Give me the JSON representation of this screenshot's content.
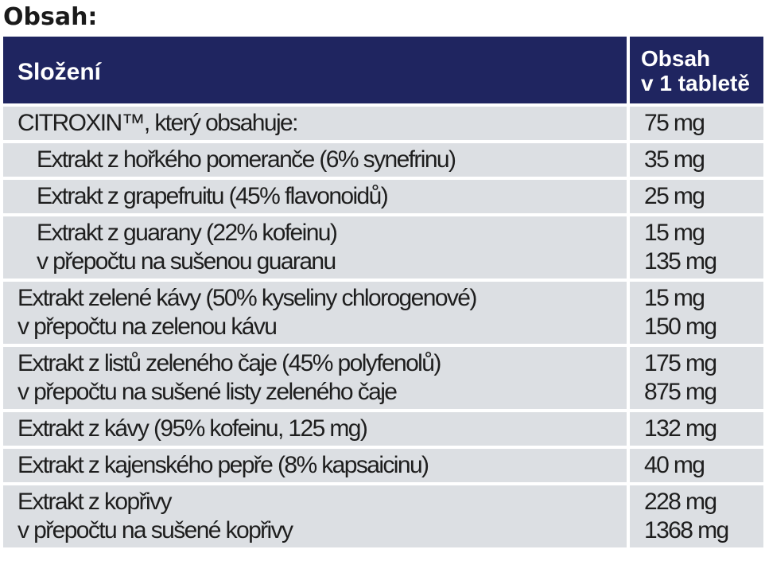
{
  "heading": "Obsah:",
  "table": {
    "col1_header": "Složení",
    "col2_header_line1": "Obsah",
    "col2_header_line2": "v 1 tabletě",
    "rows": [
      {
        "ingredient": [
          "CITROXIN™, který obsahuje:"
        ],
        "amount": [
          "75 mg"
        ]
      },
      {
        "ingredient": [
          "Extrakt z hořkého pomeranče (6% synefrinu)"
        ],
        "amount": [
          "35 mg"
        ]
      },
      {
        "ingredient": [
          "Extrakt z grapefruitu (45% flavonoidů)"
        ],
        "amount": [
          "25 mg"
        ]
      },
      {
        "ingredient": [
          "Extrakt z guarany (22% kofeinu)",
          "v přepočtu na sušenou guaranu"
        ],
        "amount": [
          "15 mg",
          "135 mg"
        ]
      },
      {
        "ingredient": [
          "Extrakt zelené kávy (50% kyseliny chlorogenové)",
          "v přepočtu na zelenou kávu"
        ],
        "amount": [
          "15 mg",
          "150 mg"
        ]
      },
      {
        "ingredient": [
          "Extrakt z listů zeleného čaje (45% polyfenolů)",
          "v přepočtu na sušené listy zeleného čaje"
        ],
        "amount": [
          "175 mg",
          "875 mg"
        ]
      },
      {
        "ingredient": [
          "Extrakt z kávy (95% kofeinu, 125 mg)"
        ],
        "amount": [
          "132 mg"
        ]
      },
      {
        "ingredient": [
          "Extrakt z kajenského pepře (8% kapsaicinu)"
        ],
        "amount": [
          "40 mg"
        ]
      },
      {
        "ingredient": [
          "Extrakt z kopřivy",
          "v přepočtu na sušené kopřivy"
        ],
        "amount": [
          "228 mg",
          "1368 mg"
        ]
      }
    ]
  },
  "colors": {
    "header_bg": "#1f2560",
    "row_bg": "#dcdfe3"
  }
}
